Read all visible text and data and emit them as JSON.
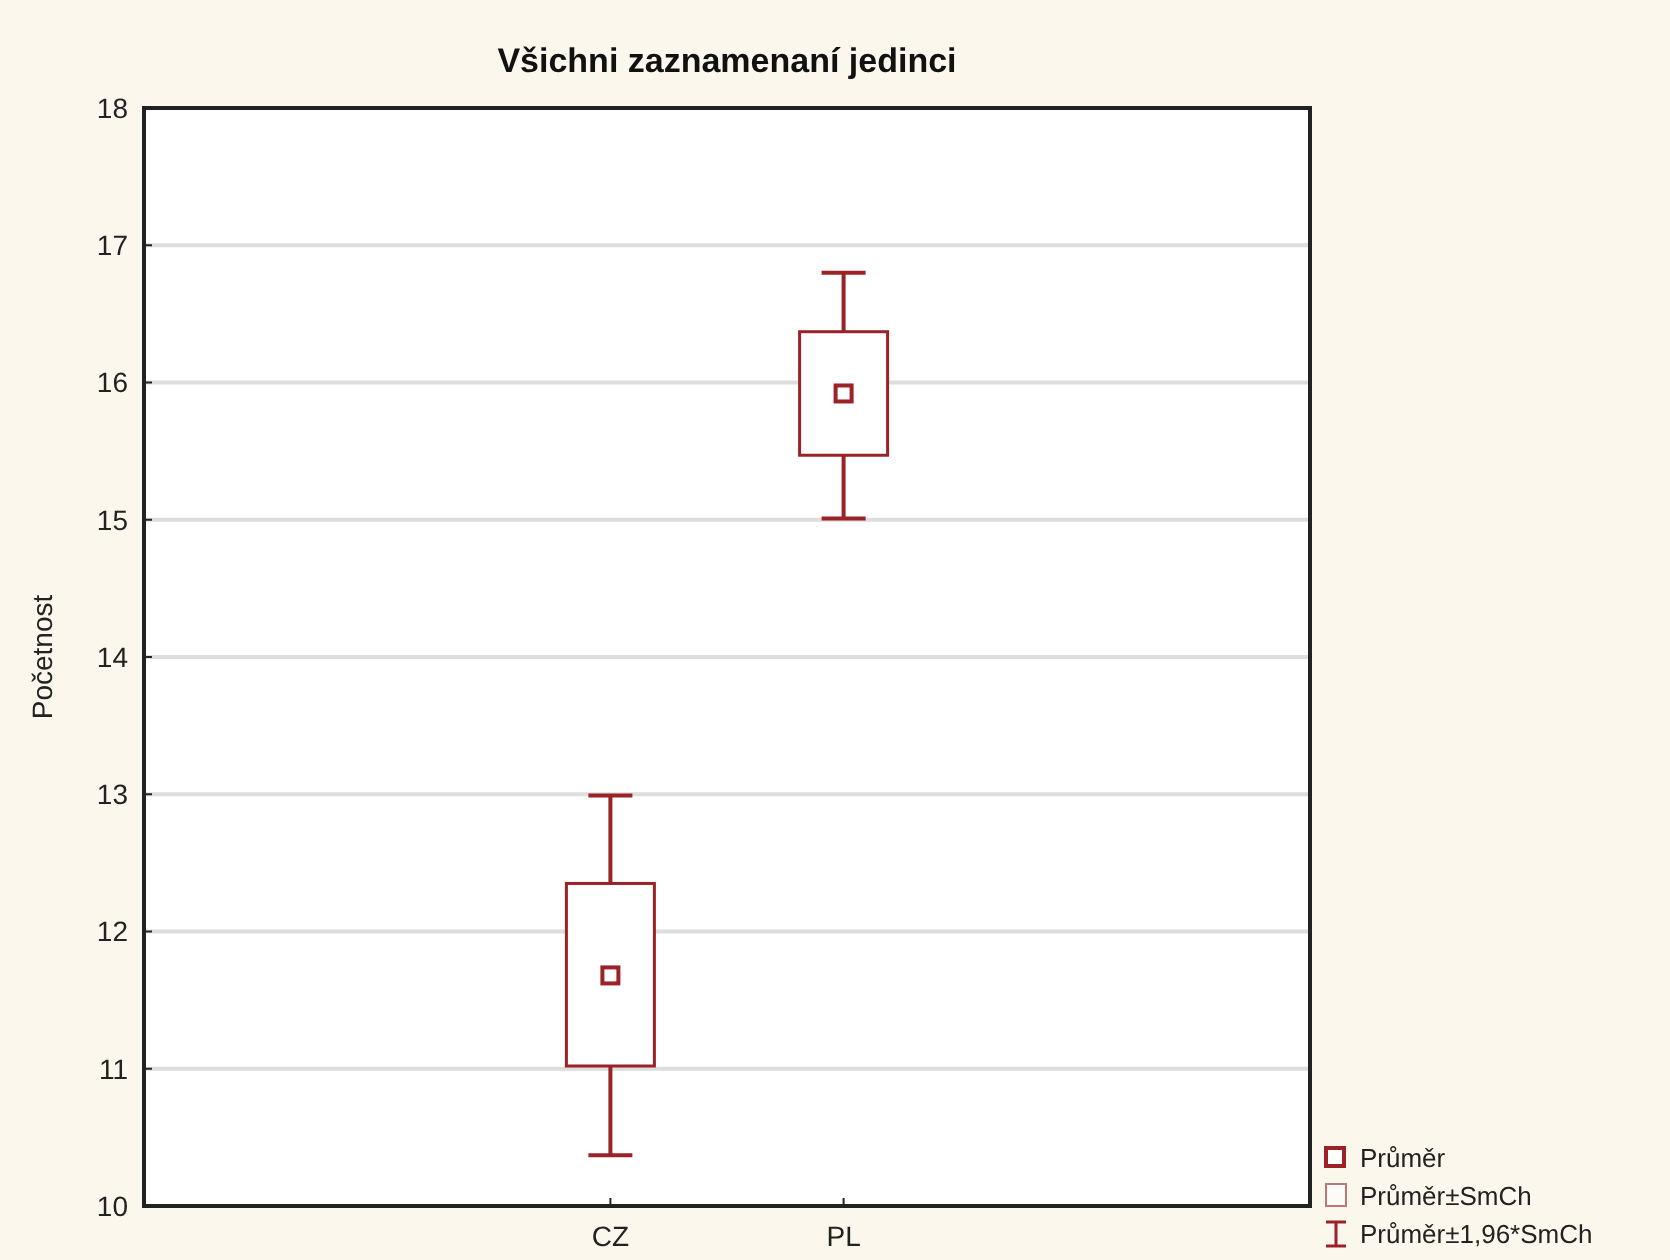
{
  "chart_data": {
    "type": "box",
    "title": "Všichni zaznamenaní jedinci",
    "ylabel": "Početnost",
    "categories": [
      "CZ",
      "PL"
    ],
    "boxes": [
      {
        "low": 10.37,
        "q1": 11.02,
        "median": 11.68,
        "q3": 12.35,
        "high": 12.99
      },
      {
        "low": 15.01,
        "q1": 15.47,
        "median": 15.92,
        "q3": 16.37,
        "high": 16.8
      }
    ],
    "color": "#9b2226",
    "ylim": [
      10,
      18
    ],
    "yticks": [
      10,
      11,
      12,
      13,
      14,
      15,
      16,
      17,
      18
    ],
    "grid": "y",
    "annotations": [
      "Průměr",
      "Průměr±SmCh",
      "Průměr±1,96*SmCh"
    ]
  }
}
